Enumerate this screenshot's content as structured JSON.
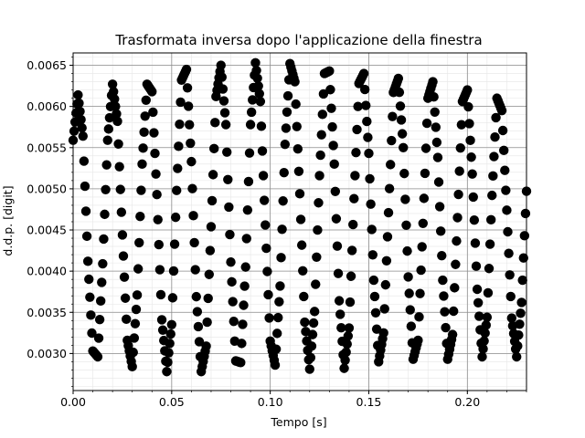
{
  "chart_data": {
    "type": "scatter",
    "title": "Trasformata inversa dopo l'applicazione della finestra",
    "xlabel": "Tempo [s]",
    "ylabel": "d.d.p. [digit]",
    "xlim": [
      0.0,
      0.23
    ],
    "ylim": [
      0.00255,
      0.00665
    ],
    "x_ticks": [
      0.0,
      0.05,
      0.1,
      0.15,
      0.2
    ],
    "x_tick_labels": [
      "0.00",
      "0.05",
      "0.10",
      "0.15",
      "0.20"
    ],
    "y_ticks": [
      0.003,
      0.0035,
      0.004,
      0.0045,
      0.005,
      0.0055,
      0.006,
      0.0065
    ],
    "y_tick_labels": [
      "0.0030",
      "0.0035",
      "0.0040",
      "0.0045",
      "0.0050",
      "0.0055",
      "0.0060",
      "0.0065"
    ],
    "grid": {
      "major": true,
      "minor": true
    },
    "marker_color": "#000000",
    "series": [
      {
        "x": [
          0.0,
          0.0025,
          0.005,
          0.0075,
          0.01,
          0.0125,
          0.015,
          0.0175,
          0.02,
          0.0225,
          0.025,
          0.0275,
          0.03,
          0.0325,
          0.035,
          0.0375,
          0.04,
          0.0425,
          0.045,
          0.0475,
          0.05,
          0.0525,
          0.055,
          0.0575,
          0.06,
          0.0625,
          0.065,
          0.0675,
          0.07,
          0.0725,
          0.075,
          0.0775,
          0.08,
          0.0825,
          0.085,
          0.0875,
          0.09,
          0.0925,
          0.095,
          0.0975,
          0.1,
          0.1025,
          0.105,
          0.1075,
          0.11,
          0.1125,
          0.115,
          0.1175,
          0.12,
          0.1225,
          0.125,
          0.1275,
          0.13,
          0.1325,
          0.135,
          0.1375,
          0.14,
          0.1425,
          0.145,
          0.1475,
          0.15,
          0.1525,
          0.155,
          0.1575,
          0.16,
          0.1625,
          0.165,
          0.1675,
          0.17,
          0.1725,
          0.175,
          0.1775,
          0.18,
          0.1825,
          0.185,
          0.1875,
          0.19,
          0.1925,
          0.195,
          0.1975,
          0.2,
          0.2025,
          0.205,
          0.2075,
          0.21,
          0.2125,
          0.215,
          0.2175,
          0.22,
          0.2225,
          0.225,
          0.2275,
          0.23
        ],
        "y": [
          0.00559,
          0.00614,
          0.00564,
          0.00412,
          0.00303,
          0.00296,
          0.00409,
          0.00559,
          0.00627,
          0.00582,
          0.00444,
          0.00316,
          0.00284,
          0.00371,
          0.0053,
          0.00627,
          0.00618,
          0.00493,
          0.00341,
          0.00278,
          0.00335,
          0.00498,
          0.00632,
          0.00645,
          0.00533,
          0.00369,
          0.00278,
          0.00309,
          0.00454,
          0.00612,
          0.0065,
          0.00578,
          0.00411,
          0.00291,
          0.00289,
          0.00405,
          0.00578,
          0.00653,
          0.00606,
          0.00456,
          0.00315,
          0.00286,
          0.00382,
          0.00554,
          0.00652,
          0.0063,
          0.00494,
          0.00338,
          0.00281,
          0.00351,
          0.00516,
          0.0064,
          0.00643,
          0.0053,
          0.00364,
          0.00282,
          0.00331,
          0.00488,
          0.00628,
          0.0064,
          0.00543,
          0.00389,
          0.0029,
          0.00325,
          0.00471,
          0.00617,
          0.00634,
          0.0055,
          0.00393,
          0.00293,
          0.00316,
          0.00458,
          0.0061,
          0.0063,
          0.00538,
          0.00389,
          0.00293,
          0.00323,
          0.00465,
          0.00606,
          0.0062,
          0.00518,
          0.00378,
          0.00296,
          0.00344,
          0.00492,
          0.0061,
          0.00595,
          0.00474,
          0.00343,
          0.00296,
          0.00362,
          0.00497
        ]
      }
    ]
  }
}
